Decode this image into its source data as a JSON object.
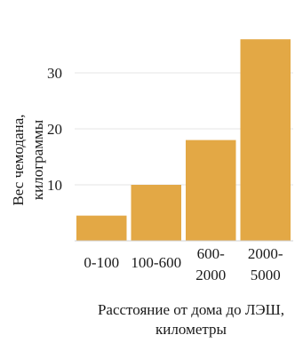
{
  "chart_data": {
    "type": "bar",
    "categories": [
      "0-100",
      "100-600",
      "600-\n2000",
      "2000-\n5000"
    ],
    "values": [
      4.5,
      10,
      18,
      36
    ],
    "ylabel": "Вес чемодана,\nкилограммы",
    "xlabel": "Расстояние от дома до ЛЭШ,\nкилометры",
    "ylim": [
      0,
      37
    ],
    "yticks": [
      10,
      20,
      30
    ],
    "grid": true,
    "colors": {
      "bar": "#E3A845",
      "grid": "#e6e6e6",
      "axis": "#d0d0d0"
    }
  }
}
